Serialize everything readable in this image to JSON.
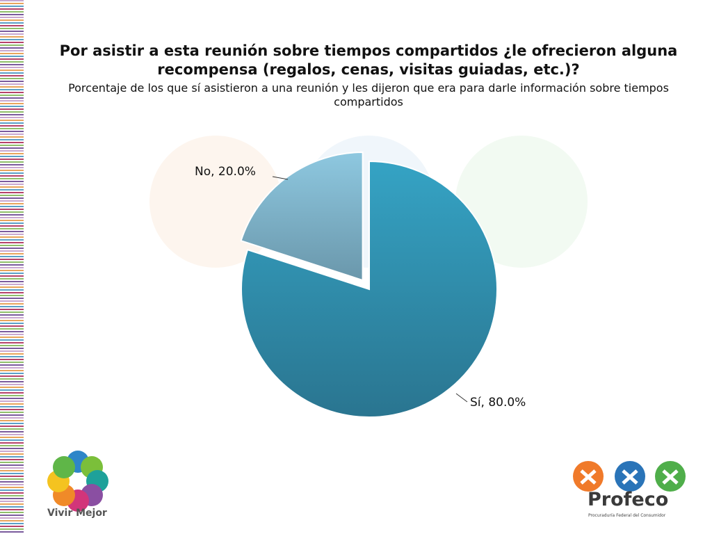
{
  "chart_data": {
    "type": "pie",
    "title": "Por asistir a esta reunión sobre tiempos compartidos ¿le ofrecieron alguna recompensa (regalos, cenas, visitas guiadas, etc.)?",
    "subtitle": "Porcentaje de los que sí asistieron a una reunión y les dijeron que era para darle información sobre tiempos compartidos",
    "slices": [
      {
        "label": "Sí",
        "value": 80.0,
        "display": "Sí, 80.0%",
        "color": "#2f8fb0",
        "exploded": false
      },
      {
        "label": "No",
        "value": 20.0,
        "display": "No, 20.0%",
        "color": "#7db7d0",
        "exploded": true
      }
    ]
  },
  "logos": {
    "left_text": "Vivir Mejor",
    "right_name": "Profeco",
    "right_subtitle": "Procuraduría Federal del Consumidor"
  },
  "colors": {
    "si_slice": "#2f8fb0",
    "no_slice": "#7db7d0"
  }
}
